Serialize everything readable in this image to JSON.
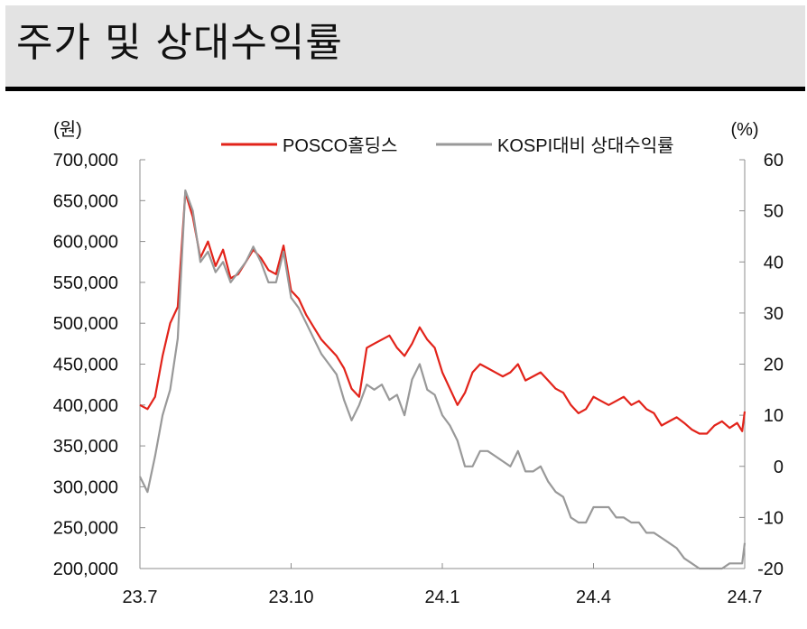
{
  "header": {
    "title": "주가 및 상대수익률"
  },
  "chart_data": {
    "type": "line",
    "y_left_unit": "(원)",
    "y_right_unit": "(%)",
    "y_left_ticks": [
      "700,000",
      "650,000",
      "600,000",
      "550,000",
      "500,000",
      "450,000",
      "400,000",
      "350,000",
      "300,000",
      "250,000",
      "200,000"
    ],
    "y_left_range": [
      200000,
      700000
    ],
    "y_right_ticks": [
      "60",
      "50",
      "40",
      "30",
      "20",
      "10",
      "0",
      "-10",
      "-20"
    ],
    "y_right_range": [
      -20,
      60
    ],
    "x_ticks": [
      "23.7",
      "23.10",
      "24.1",
      "24.4",
      "24.7"
    ],
    "x_range": [
      0,
      12
    ],
    "grid": false,
    "legend_position": "top",
    "series": [
      {
        "name": "POSCO홀딩스",
        "axis": "left",
        "color": "#e2231a",
        "x": [
          0.0,
          0.15,
          0.3,
          0.45,
          0.6,
          0.75,
          0.9,
          1.05,
          1.2,
          1.35,
          1.5,
          1.65,
          1.8,
          1.95,
          2.1,
          2.25,
          2.4,
          2.55,
          2.7,
          2.85,
          3.0,
          3.15,
          3.3,
          3.45,
          3.6,
          3.75,
          3.9,
          4.05,
          4.2,
          4.35,
          4.5,
          4.65,
          4.8,
          4.95,
          5.1,
          5.25,
          5.4,
          5.55,
          5.7,
          5.85,
          6.0,
          6.15,
          6.3,
          6.45,
          6.6,
          6.75,
          6.9,
          7.05,
          7.2,
          7.35,
          7.5,
          7.65,
          7.8,
          7.95,
          8.1,
          8.25,
          8.4,
          8.55,
          8.7,
          8.85,
          9.0,
          9.15,
          9.3,
          9.45,
          9.6,
          9.75,
          9.9,
          10.05,
          10.2,
          10.35,
          10.5,
          10.65,
          10.8,
          10.95,
          11.1,
          11.25,
          11.4,
          11.55,
          11.7,
          11.85,
          11.95,
          12.0
        ],
        "values": [
          400000,
          395000,
          410000,
          460000,
          500000,
          520000,
          660000,
          630000,
          580000,
          600000,
          570000,
          590000,
          555000,
          560000,
          575000,
          590000,
          580000,
          565000,
          560000,
          595000,
          540000,
          530000,
          510000,
          495000,
          480000,
          470000,
          460000,
          445000,
          420000,
          410000,
          470000,
          475000,
          480000,
          485000,
          470000,
          460000,
          475000,
          495000,
          480000,
          470000,
          440000,
          420000,
          400000,
          415000,
          440000,
          450000,
          445000,
          440000,
          435000,
          440000,
          450000,
          430000,
          435000,
          440000,
          430000,
          420000,
          415000,
          400000,
          390000,
          395000,
          410000,
          405000,
          400000,
          405000,
          410000,
          400000,
          405000,
          395000,
          390000,
          375000,
          380000,
          385000,
          378000,
          370000,
          365000,
          365000,
          375000,
          380000,
          372000,
          378000,
          368000,
          392000
        ]
      },
      {
        "name": "KOSPI대비 상대수익률",
        "axis": "right",
        "color": "#999999",
        "x": [
          0.0,
          0.15,
          0.3,
          0.45,
          0.6,
          0.75,
          0.9,
          1.05,
          1.2,
          1.35,
          1.5,
          1.65,
          1.8,
          1.95,
          2.1,
          2.25,
          2.4,
          2.55,
          2.7,
          2.85,
          3.0,
          3.15,
          3.3,
          3.45,
          3.6,
          3.75,
          3.9,
          4.05,
          4.2,
          4.35,
          4.5,
          4.65,
          4.8,
          4.95,
          5.1,
          5.25,
          5.4,
          5.55,
          5.7,
          5.85,
          6.0,
          6.15,
          6.3,
          6.45,
          6.6,
          6.75,
          6.9,
          7.05,
          7.2,
          7.35,
          7.5,
          7.65,
          7.8,
          7.95,
          8.1,
          8.25,
          8.4,
          8.55,
          8.7,
          8.85,
          9.0,
          9.15,
          9.3,
          9.45,
          9.6,
          9.75,
          9.9,
          10.05,
          10.2,
          10.35,
          10.5,
          10.65,
          10.8,
          10.95,
          11.1,
          11.25,
          11.4,
          11.55,
          11.7,
          11.85,
          11.95,
          12.0
        ],
        "values": [
          -2,
          -5,
          2,
          10,
          15,
          25,
          54,
          50,
          40,
          42,
          38,
          40,
          36,
          38,
          40,
          43,
          40,
          36,
          36,
          42,
          33,
          31,
          28,
          25,
          22,
          20,
          18,
          13,
          9,
          12,
          16,
          15,
          16,
          13,
          14,
          10,
          17,
          20,
          15,
          14,
          10,
          8,
          5,
          0,
          0,
          3,
          3,
          2,
          1,
          0,
          3,
          -1,
          -1,
          0,
          -3,
          -5,
          -6,
          -10,
          -11,
          -11,
          -8,
          -8,
          -8,
          -10,
          -10,
          -11,
          -11,
          -13,
          -13,
          -14,
          -15,
          -16,
          -18,
          -19,
          -20,
          -20,
          -20,
          -20,
          -19,
          -19,
          -19,
          -15
        ]
      }
    ]
  }
}
